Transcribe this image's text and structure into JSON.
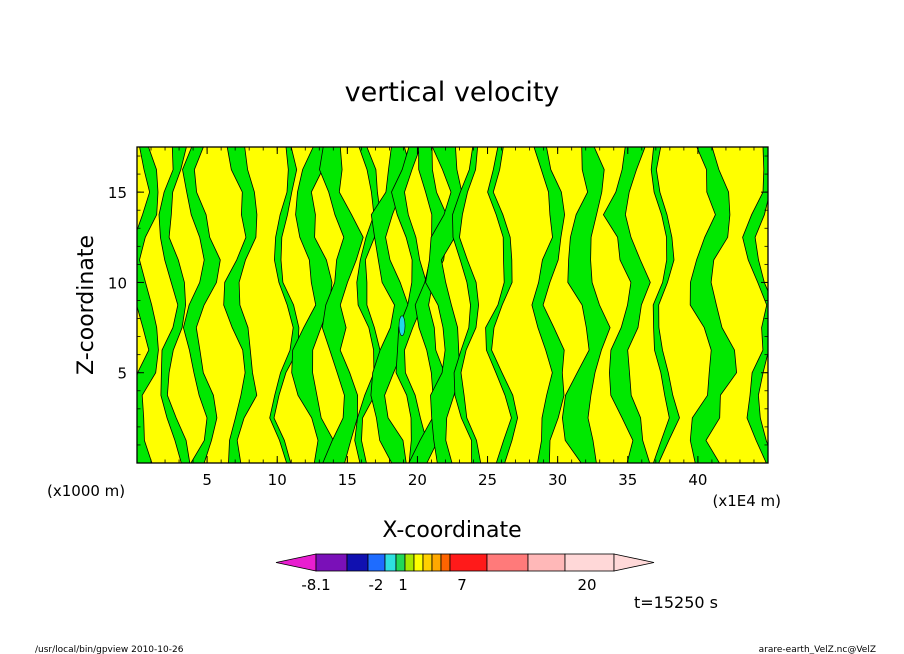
{
  "chart_data": {
    "type": "heatmap",
    "title": "vertical velocity",
    "xlabel": "X-coordinate",
    "ylabel": "Z-coordinate",
    "x_unit_left": "(x1000 m)",
    "x_unit_right": "(x1E4 m)",
    "xlim": [
      0,
      45
    ],
    "ylim": [
      0,
      17.5
    ],
    "x_ticks": [
      5,
      10,
      15,
      20,
      25,
      30,
      35,
      40
    ],
    "y_ticks": [
      5,
      10,
      15
    ],
    "time_label": "t=15250 s",
    "colorbar": {
      "tick_labels": [
        {
          "label": "-8.1",
          "value": -8.1
        },
        {
          "label": "-2",
          "value": -2
        },
        {
          "label": "1",
          "value": 1
        },
        {
          "label": "7",
          "value": 7
        },
        {
          "label": "20",
          "value": 20
        }
      ],
      "colors": [
        "#e81ed0",
        "#7a10b8",
        "#1010b0",
        "#1e6cff",
        "#2ee0e0",
        "#22d858",
        "#a8e800",
        "#ffff00",
        "#ffd000",
        "#ffa800",
        "#ff6400",
        "#ff1a1a",
        "#ff7a7a",
        "#ffb8b8",
        "#ffd8d8"
      ]
    },
    "field_colors": {
      "background": "#ffff00",
      "band": "#00e800",
      "core": "#22d8e8"
    },
    "band_x_centers": [
      0.5,
      2.5,
      4.5,
      7.5,
      10.5,
      12.5,
      14.5,
      16.5,
      18.0,
      19.5,
      21.0,
      22.0,
      23.5,
      26.0,
      29.5,
      32.0,
      35.0,
      37.5,
      41.0,
      44.5
    ]
  },
  "footer": {
    "left": "/usr/local/bin/gpview   2010-10-26",
    "right": "arare-earth_VelZ.nc@VelZ"
  }
}
